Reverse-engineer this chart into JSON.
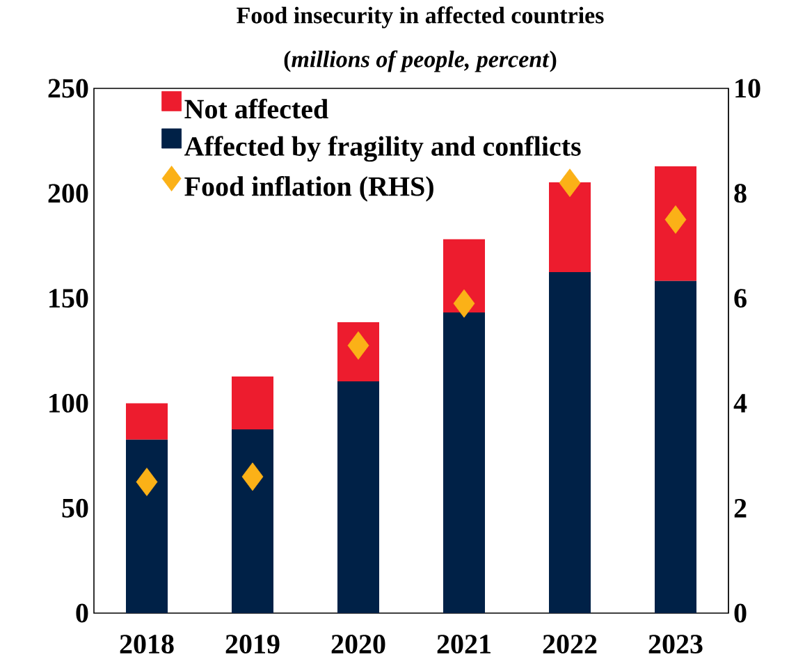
{
  "chart_data": {
    "type": "bar",
    "title": "Food insecurity in affected countries",
    "subtitle": "(*millions of people, percent*)",
    "categories": [
      "2018",
      "2019",
      "2020",
      "2021",
      "2022",
      "2023"
    ],
    "stacked": true,
    "series": [
      {
        "name": "Affected by fragility and conflicts",
        "type": "bar",
        "color": "#002147",
        "values": [
          82.6,
          87.5,
          110.4,
          143.2,
          162.5,
          158.2
        ]
      },
      {
        "name": "Not affected",
        "type": "bar",
        "color": "#ed1c2e",
        "values": [
          17.4,
          25.2,
          28.2,
          34.9,
          42.7,
          54.7
        ]
      },
      {
        "name": "Food inflation (RHS)",
        "type": "scatter",
        "axis": "y2",
        "marker": "diamond",
        "color": "#fbb117",
        "values": [
          2.5,
          2.6,
          5.1,
          5.9,
          8.2,
          7.5
        ]
      }
    ],
    "ylim": [
      0,
      250
    ],
    "yticks": [
      0,
      50,
      100,
      150,
      200,
      250
    ],
    "y2lim": [
      0,
      10
    ],
    "y2ticks": [
      0,
      2,
      4,
      6,
      8,
      10
    ],
    "legend": "top left"
  }
}
